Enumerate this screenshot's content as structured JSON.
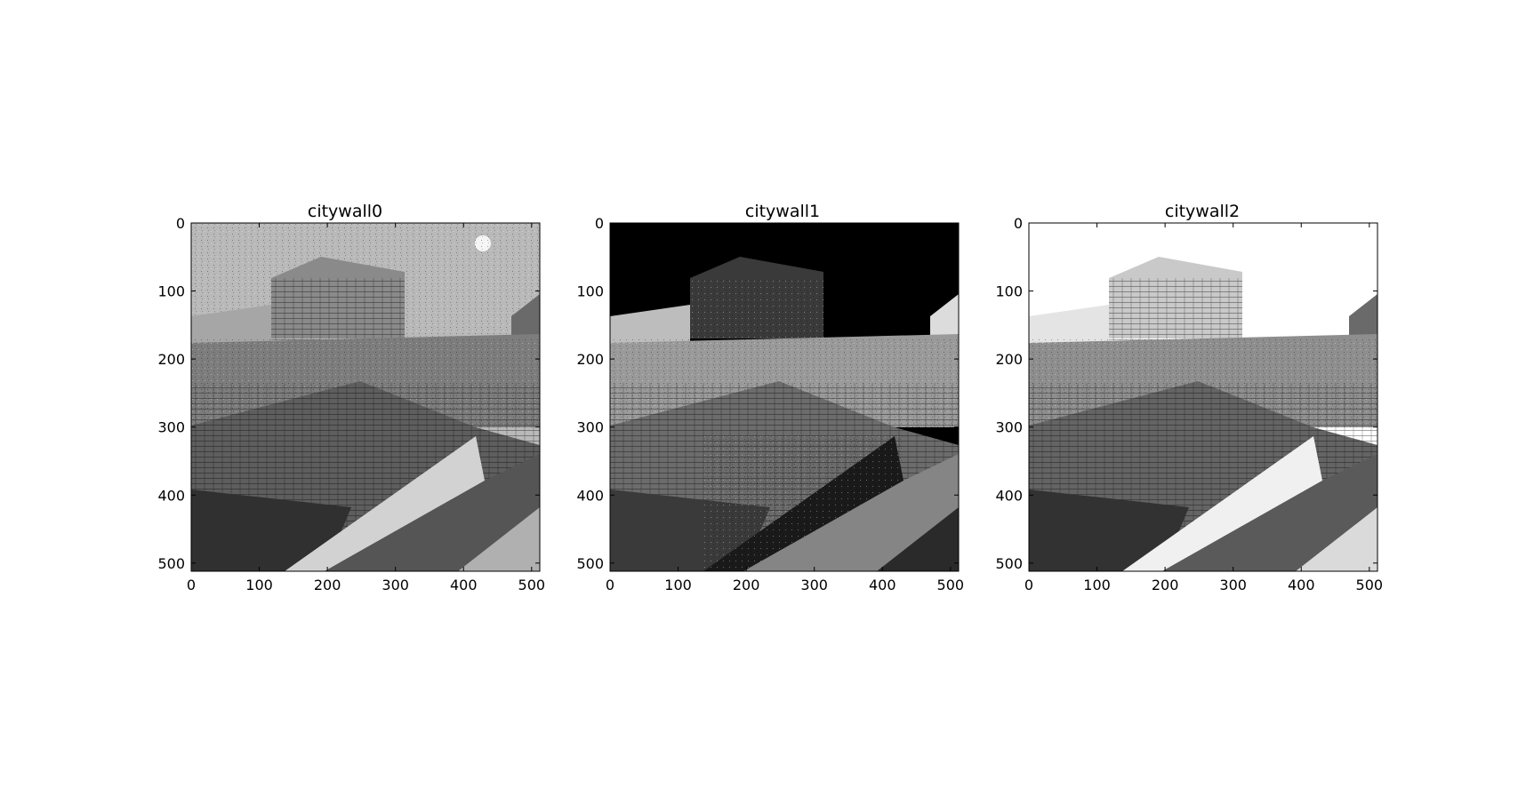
{
  "chart_data": [
    {
      "type": "heatmap",
      "title": "citywall0",
      "xlabel": "",
      "ylabel": "",
      "xlim": [
        0,
        512
      ],
      "ylim": [
        512,
        0
      ],
      "x_ticks": [
        0,
        100,
        200,
        300,
        400,
        500
      ],
      "y_ticks": [
        0,
        100,
        200,
        300,
        400,
        500
      ],
      "grid": false,
      "colormap": "gray",
      "sky_tone": "#b9b9b9"
    },
    {
      "type": "heatmap",
      "title": "citywall1",
      "xlabel": "",
      "ylabel": "",
      "xlim": [
        0,
        512
      ],
      "ylim": [
        512,
        0
      ],
      "x_ticks": [
        0,
        100,
        200,
        300,
        400,
        500
      ],
      "y_ticks": [
        0,
        100,
        200,
        300,
        400,
        500
      ],
      "grid": false,
      "colormap": "gray",
      "sky_tone": "#000000"
    },
    {
      "type": "heatmap",
      "title": "citywall2",
      "xlabel": "",
      "ylabel": "",
      "xlim": [
        0,
        512
      ],
      "ylim": [
        512,
        0
      ],
      "x_ticks": [
        0,
        100,
        200,
        300,
        400,
        500
      ],
      "y_ticks": [
        0,
        100,
        200,
        300,
        400,
        500
      ],
      "grid": false,
      "colormap": "gray",
      "sky_tone": "#ffffff"
    }
  ]
}
